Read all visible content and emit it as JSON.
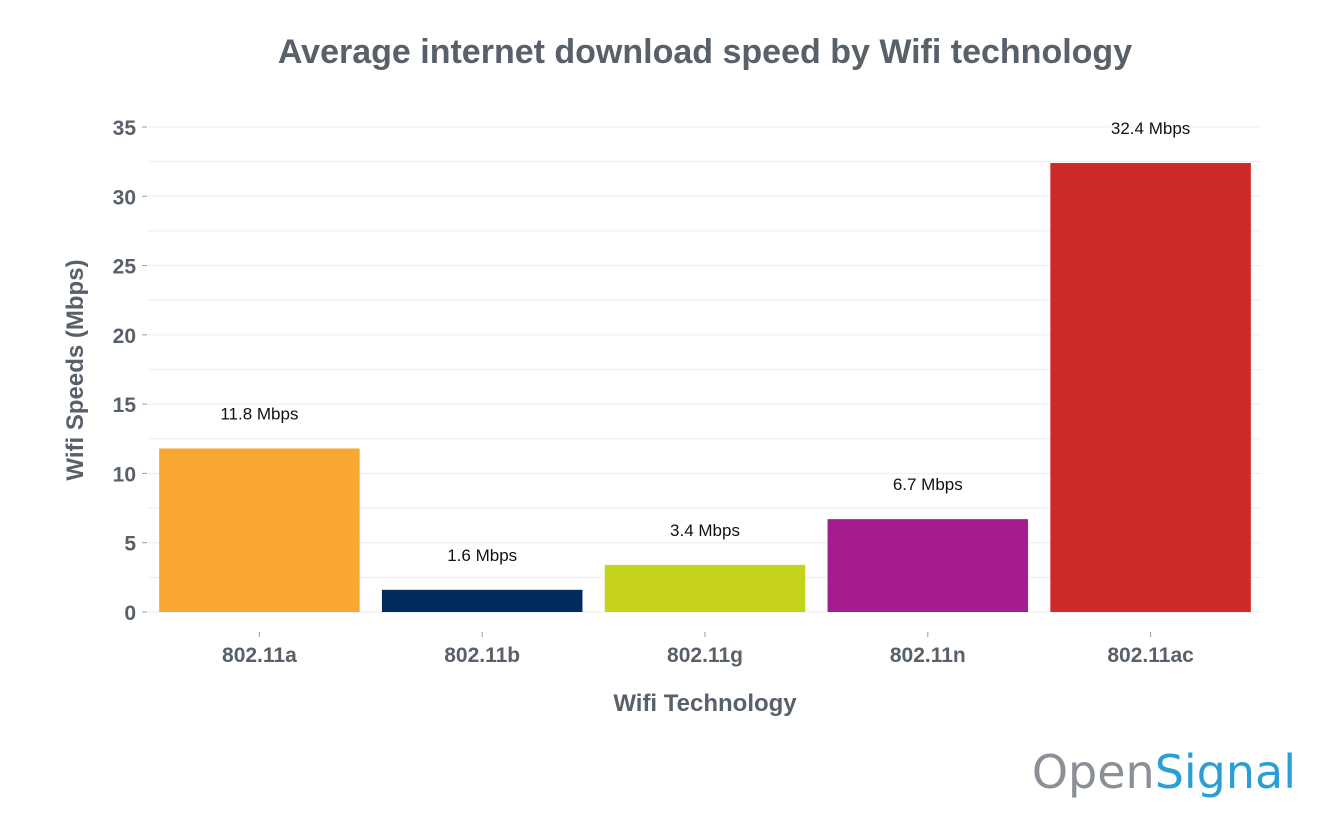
{
  "chart_data": {
    "type": "bar",
    "title": "Average internet download speed by Wifi technology",
    "xlabel": "Wifi Technology",
    "ylabel": "Wifi Speeds (Mbps)",
    "categories": [
      "802.11a",
      "802.11b",
      "802.11g",
      "802.11n",
      "802.11ac"
    ],
    "values": [
      11.8,
      1.6,
      3.4,
      6.7,
      32.4
    ],
    "data_labels": [
      "11.8 Mbps",
      "1.6 Mbps",
      "3.4 Mbps",
      "6.7 Mbps",
      "32.4 Mbps"
    ],
    "colors": [
      "#f9a733",
      "#002b5c",
      "#c5d41b",
      "#a51c8d",
      "#cd2a2a"
    ],
    "ylim": [
      0,
      35
    ],
    "yticks": [
      0,
      5,
      10,
      15,
      20,
      25,
      30,
      35
    ],
    "grid": true,
    "legend": "none"
  },
  "branding": {
    "logo_part1": "Open",
    "logo_part2": "Signal",
    "logo_color1": "#8a9096",
    "logo_color2": "#2a9fd6"
  }
}
